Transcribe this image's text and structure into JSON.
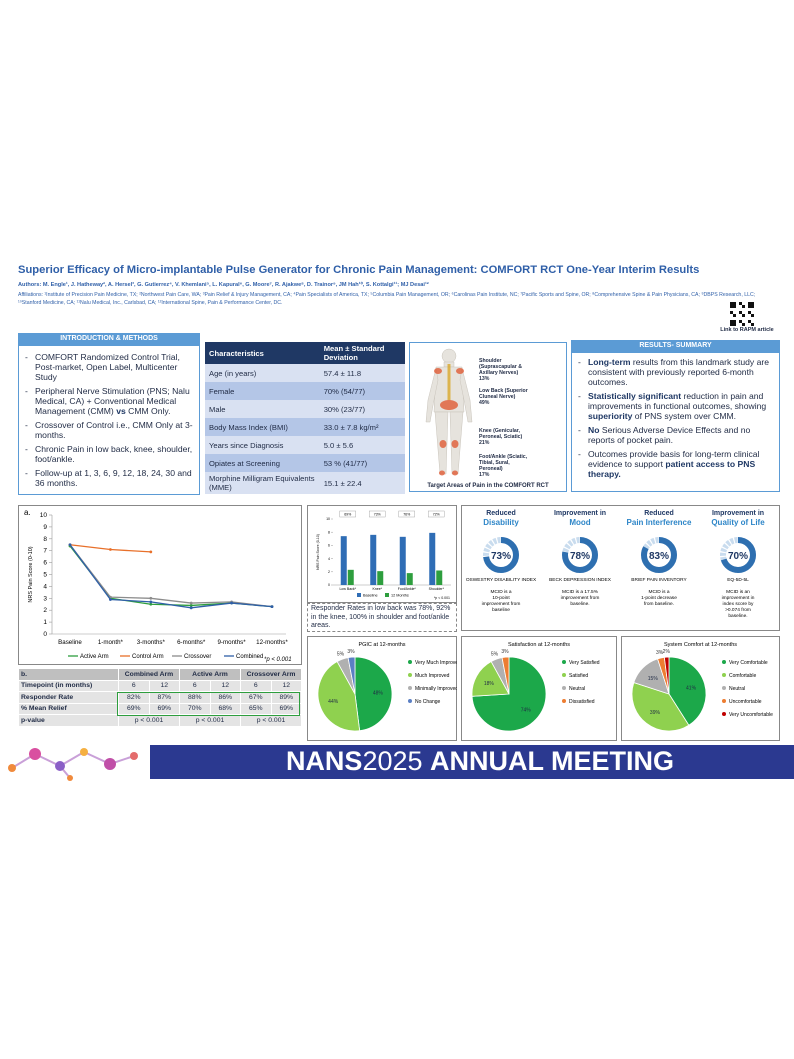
{
  "header": {
    "title": "Superior Efficacy of Micro-implantable Pulse Generator for Chronic Pain Management: COMFORT RCT One-Year Interim Results",
    "authors": "Authors: M. Engle¹, J. Hatheway², A. Hersel³, G. Gutierrez⁴, V. Khemlani⁵, L. Kapural⁶, G. Moore⁷, R. Ajakwe⁸, D. Trainor⁹, JM Hah¹⁰, S. Kottalgi¹¹; MJ Desai¹²",
    "affiliations": "Affiliations: ¹Institute of Precision Pain Medicine, TX; ²Northwest Pain Care, WA; ³Pain Relief & Injury Management, CA; ⁴Pain Specialists of America, TX; ⁵Columbia Pain Management, OR; ⁶Carolinas Pain Institute, NC; ⁷Pacific Sports and Spine, OR; ⁸Comprehensive Spine & Pain Physicians, CA; ⁹DBPS Research, LLC; ¹⁰Stanford Medicine, CA; ¹¹Nalu Medical, Inc., Carlsbad, CA; ¹²International Spine, Pain & Performance Center, DC.",
    "qr_caption": "Link to RAPM article"
  },
  "intro": {
    "heading": "INTRODUCTION & METHODS",
    "bullets": [
      [
        {
          "text": "COMFORT Randomized Control Trial, Post-market, Open Label, Multicenter Study"
        }
      ],
      [
        {
          "text": "Peripheral Nerve Stimulation (PNS; Nalu Medical, CA) + Conventional Medical Management (CMM) "
        },
        {
          "text": "vs",
          "bold": true
        },
        {
          "text": " CMM Only."
        }
      ],
      [
        {
          "text": "Crossover of Control i.e., CMM Only at 3-months."
        }
      ],
      [
        {
          "text": "Chronic Pain in low back, knee, shoulder, foot/ankle."
        }
      ],
      [
        {
          "text": "Follow-up at 1, 3, 6, 9, 12, 18, 24, 30 and 36 months."
        }
      ]
    ]
  },
  "table": {
    "headers": [
      "Characteristics",
      "Mean ± Standard Deviation"
    ],
    "rows": [
      [
        "Age (in years)",
        "57.4 ± 11.8"
      ],
      [
        "Female",
        "70% (54/77)"
      ],
      [
        "Male",
        "30% (23/77)"
      ],
      [
        "Body Mass Index (BMI)",
        "33.0 ± 7.8 kg/m²"
      ],
      [
        "Years since Diagnosis",
        "5.0 ± 5.6"
      ],
      [
        "Opiates at Screening",
        "53 % (41/77)"
      ],
      [
        "Morphine Milligram Equivalents (MME)",
        "15.1 ± 22.4"
      ]
    ]
  },
  "figure": {
    "caption": "Target Areas of Pain in the COMFORT RCT",
    "labels": [
      {
        "name": "Shoulder (Suprascapular & Axillary Nerves)",
        "pct": "13%"
      },
      {
        "name": "Low Back (Superior Cluneal Nerve)",
        "pct": "49%"
      },
      {
        "name": "Knee (Genicular, Peroneal, Sciatic)",
        "pct": "21%"
      },
      {
        "name": "Foot/Ankle (Sciatic, Tibial, Sural, Peroneal)",
        "pct": "17%"
      }
    ]
  },
  "summary": {
    "heading": "RESULTS- SUMMARY",
    "bullets": [
      [
        {
          "text": "Long-term",
          "bold": true
        },
        {
          "text": " results from this landmark study are consistent with previously reported 6-month outcomes."
        }
      ],
      [
        {
          "text": "Statistically significant",
          "bold": true
        },
        {
          "text": " reduction in pain and improvements in functional outcomes, showing "
        },
        {
          "text": "superiority",
          "bold": true
        },
        {
          "text": " of PNS system over CMM."
        }
      ],
      [
        {
          "text": "No",
          "bold": true
        },
        {
          "text": " Serious Adverse Device Effects and no reports of pocket pain."
        }
      ],
      [
        {
          "text": "Outcomes provide basis for long-term clinical evidence to support "
        },
        {
          "text": "patient access to PNS therapy.",
          "bold": true
        }
      ]
    ]
  },
  "chart_data": [
    {
      "type": "line",
      "label": "a.",
      "y_label": "NRS Pain Score (0-10)",
      "categories": [
        "Baseline",
        "1-month*",
        "3-months*",
        "6-months*",
        "9-months*",
        "12-months*"
      ],
      "ylim": [
        0,
        10
      ],
      "yticks": [
        0,
        1,
        2,
        3,
        4,
        5,
        6,
        7,
        8,
        9,
        10
      ],
      "series": [
        {
          "name": "Active Arm",
          "color": "#2e9e3e",
          "values": [
            7.4,
            3.0,
            2.5,
            2.4,
            2.6,
            2.3
          ]
        },
        {
          "name": "Control Arm",
          "color": "#e8702a",
          "values": [
            7.5,
            7.1,
            6.9,
            null,
            null,
            null
          ]
        },
        {
          "name": "Crossover",
          "color": "#8c8c8c",
          "values": [
            7.5,
            3.1,
            3.0,
            2.6,
            2.7,
            2.3
          ]
        },
        {
          "name": "Combined",
          "color": "#2f5fa8",
          "values": [
            7.5,
            2.9,
            2.7,
            2.2,
            2.6,
            2.3
          ]
        }
      ],
      "footnote": "*p < 0.001"
    },
    {
      "type": "bar",
      "y_label": "NRS Pain Score (0-10)",
      "categories": [
        "Low Back*",
        "Knee*",
        "Foot/Ankle*",
        "Shoulder*"
      ],
      "ylim": [
        0,
        10
      ],
      "yticks": [
        0,
        2,
        4,
        6,
        8,
        10
      ],
      "series": [
        {
          "name": "Baseline",
          "color": "#2f6db5",
          "values": [
            7.4,
            7.6,
            7.3,
            7.9
          ]
        },
        {
          "name": "12 Months",
          "color": "#2e9e3e",
          "values": [
            2.3,
            2.1,
            1.8,
            2.2
          ]
        }
      ],
      "annotations": [
        "69%",
        "73%",
        "76%",
        "72%"
      ],
      "footnote": "*p < 0.001",
      "caption": "Responder Rates in low back was 78%, 92% in the knee, 100% in shoulder and foot/ankle areas."
    },
    {
      "type": "pie",
      "title": "PGIC at 12-months",
      "categories": [
        "Very Much Improved",
        "Much Improved",
        "Minimally Improved",
        "No Change"
      ],
      "values": [
        48,
        44,
        5,
        3
      ],
      "value_labels": [
        "48%",
        "44%",
        "5%",
        "3%"
      ],
      "colors": [
        "#1ca84a",
        "#8fd14f",
        "#b0b0b0",
        "#5b7fc4"
      ]
    },
    {
      "type": "pie",
      "title": "Satisfaction at 12-months",
      "categories": [
        "Very Satisfied",
        "Satisfied",
        "Neutral",
        "Dissatisfied"
      ],
      "values": [
        74,
        18,
        5,
        3
      ],
      "value_labels": [
        "74%",
        "18%",
        "5%",
        "3%"
      ],
      "colors": [
        "#1ca84a",
        "#8fd14f",
        "#b0b0b0",
        "#ed7d31"
      ]
    },
    {
      "type": "pie",
      "title": "System Comfort at 12-months",
      "categories": [
        "Very Comfortable",
        "Comfortable",
        "Neutral",
        "Uncomfortable",
        "Very Uncomfortable"
      ],
      "values": [
        41,
        39,
        15,
        3,
        2
      ],
      "value_labels": [
        "41%",
        "39%",
        "15%",
        "3%",
        "2%"
      ],
      "colors": [
        "#1ca84a",
        "#8fd14f",
        "#b0b0b0",
        "#ed7d31",
        "#c00000"
      ]
    }
  ],
  "table_b": {
    "label": "b.",
    "arms": [
      "Combined Arm",
      "Active Arm",
      "Crossover Arm"
    ],
    "rows": [
      [
        "Timepoint (in months)",
        "6",
        "12",
        "6",
        "12",
        "6",
        "12"
      ],
      [
        "Responder Rate",
        "82%",
        "87%",
        "88%",
        "86%",
        "67%",
        "89%"
      ],
      [
        "% Mean Relief",
        "69%",
        "69%",
        "70%",
        "68%",
        "65%",
        "69%"
      ]
    ],
    "pvalue_label": "p-value",
    "pvalues": [
      "p < 0.001",
      "p < 0.001",
      "p < 0.001"
    ]
  },
  "metrics": [
    {
      "line1": "Reduced",
      "line2": "Disability",
      "value": 73,
      "value_label": "73%",
      "name": "OSWESTRY DISABILITY INDEX",
      "note": "MCID is a 10-point improvement from baseline"
    },
    {
      "line1": "Improvement in",
      "line2": "Mood",
      "value": 78,
      "value_label": "78%",
      "name": "BECK DEPRESSION INDEX",
      "note": "MCID is a 17.5% improvement from baseline."
    },
    {
      "line1": "Reduced",
      "line2": "Pain Interference",
      "value": 83,
      "value_label": "83%",
      "name": "BRIEF PAIN INVENTORY",
      "note": "MCID is a 1-point decrease from baseline."
    },
    {
      "line1": "Improvement in",
      "line2": "Quality of Life",
      "value": 70,
      "value_label": "70%",
      "name": "EQ-5D-5L",
      "note": "MCID is an improvement in index score by >0.074 from baseline."
    }
  ],
  "banner": [
    {
      "text": "NANS",
      "bold": true
    },
    {
      "text": "2025 "
    },
    {
      "text": "ANNUAL MEETING",
      "bold": true
    }
  ]
}
